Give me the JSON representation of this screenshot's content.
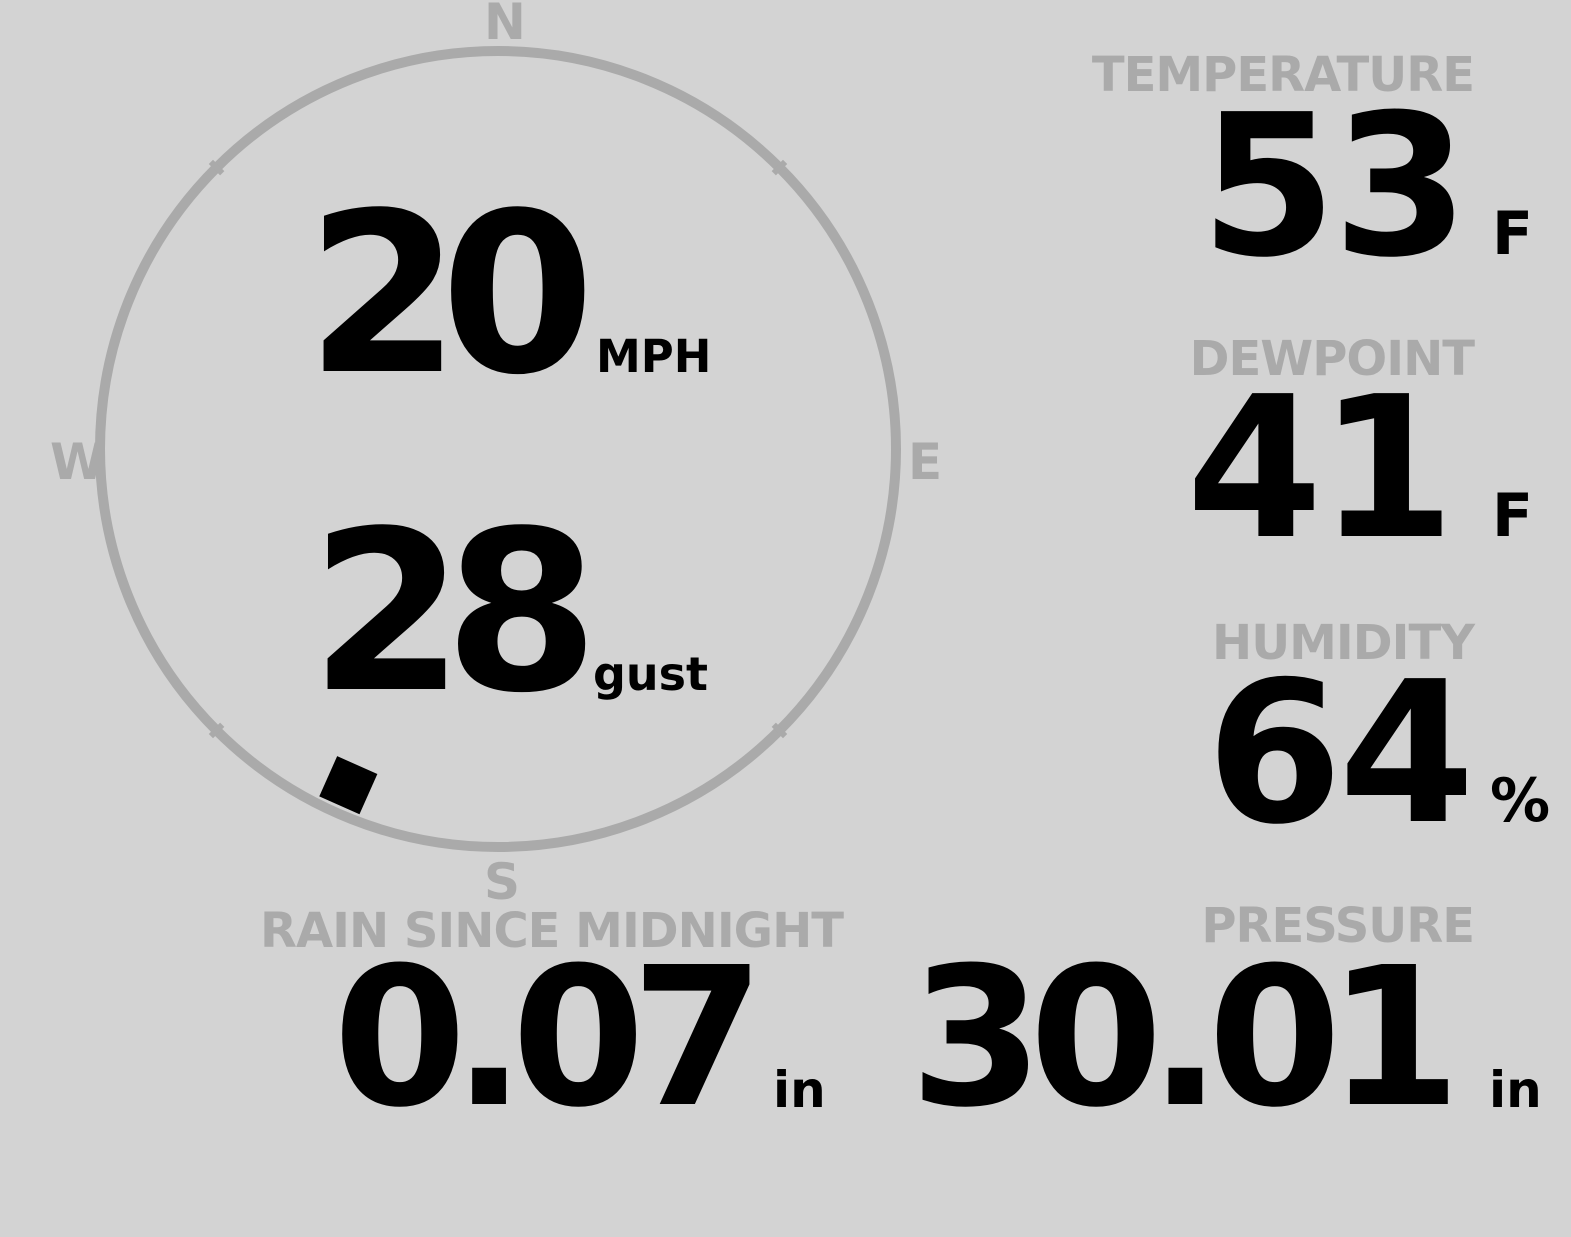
{
  "compass": {
    "north": "N",
    "south": "S",
    "east": "E",
    "west": "W",
    "wind_direction_deg": 204,
    "ring_color": "#aaaaaa"
  },
  "wind": {
    "speed": "20",
    "speed_unit": "MPH",
    "gust": "28",
    "gust_unit": "gust"
  },
  "temperature": {
    "label": "TEMPERATURE",
    "value": "53",
    "unit": "F"
  },
  "dewpoint": {
    "label": "DEWPOINT",
    "value": "41",
    "unit": "F"
  },
  "humidity": {
    "label": "HUMIDITY",
    "value": "64",
    "unit": "%"
  },
  "rain": {
    "label": "RAIN SINCE MIDNIGHT",
    "value": "0.07",
    "unit": "in"
  },
  "pressure": {
    "label": "PRESSURE",
    "value": "30.01",
    "unit": "in"
  },
  "colors": {
    "background": "#d3d3d3",
    "label": "#aaaaaa",
    "value": "#000000"
  }
}
